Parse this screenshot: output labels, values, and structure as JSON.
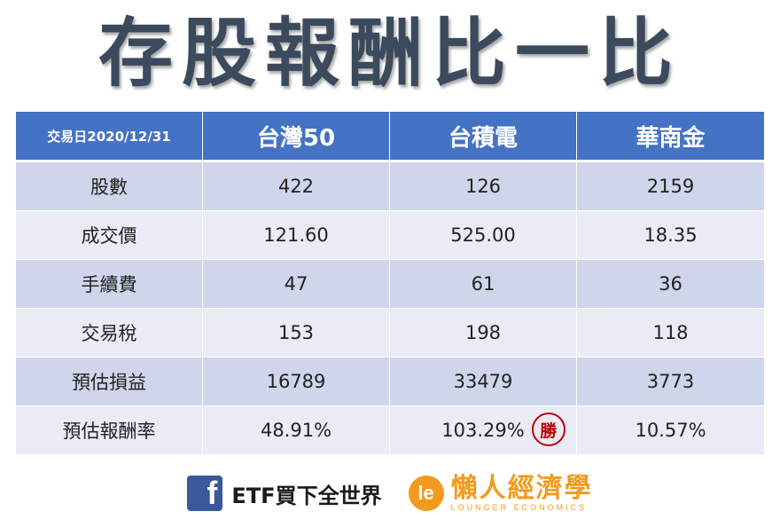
{
  "title": "存股報酬比一比",
  "table": {
    "header": {
      "date_label": "交易日2020/12/31",
      "columns": [
        "台灣50",
        "台積電",
        "華南金"
      ]
    },
    "rows": [
      {
        "label": "股數",
        "values": [
          "422",
          "126",
          "2159"
        ]
      },
      {
        "label": "成交價",
        "values": [
          "121.60",
          "525.00",
          "18.35"
        ]
      },
      {
        "label": "手續費",
        "values": [
          "47",
          "61",
          "36"
        ]
      },
      {
        "label": "交易稅",
        "values": [
          "153",
          "198",
          "118"
        ]
      },
      {
        "label": "預估損益",
        "values": [
          "16789",
          "33479",
          "3773"
        ]
      },
      {
        "label": "預估報酬率",
        "values": [
          "48.91%",
          "103.29%",
          "10.57%"
        ]
      }
    ],
    "winner_badge": "勝"
  },
  "footer": {
    "facebook_icon": "facebook-icon",
    "facebook_glyph": "f",
    "facebook_label": "ETF買下全世界",
    "logo_glyph": "le",
    "brand_name": "懶人經濟學",
    "brand_sub": "LOUNGER ECONOMICS"
  }
}
